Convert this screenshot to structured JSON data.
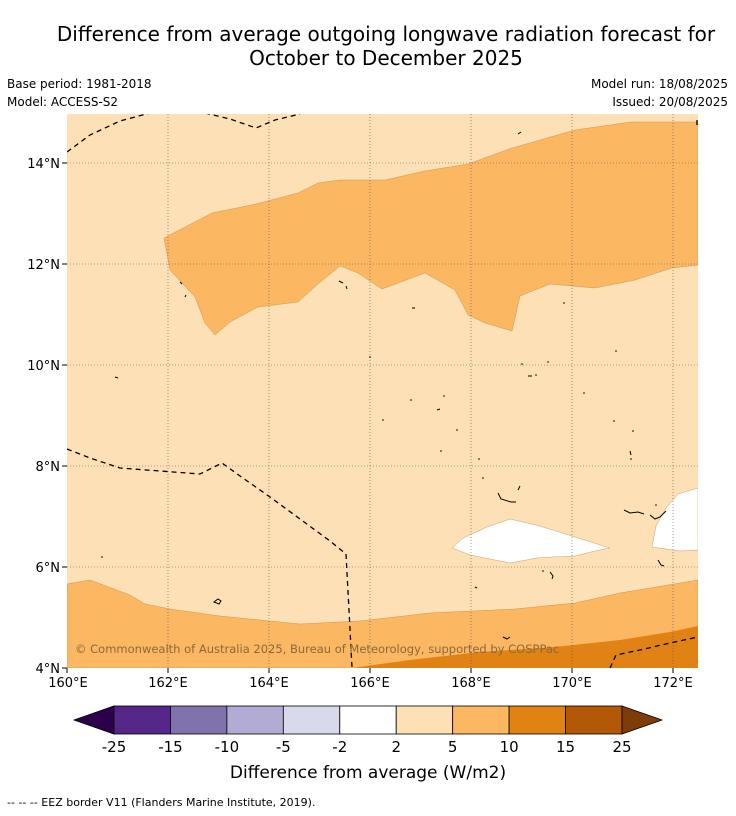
{
  "title_line1": "Difference from average outgoing longwave radiation forecast for",
  "title_line2": "October to December 2025",
  "meta": {
    "base_period": "Base period: 1981-2018",
    "model": "Model: ACCESS-S2",
    "model_run": "Model run: 18/08/2025",
    "issued": "Issued: 20/08/2025"
  },
  "copyright": "© Commonwealth of Australia 2025, Bureau of Meteorology, supported by COSPPac",
  "chart_data": {
    "type": "map",
    "x_ticks": [
      "160°E",
      "162°E",
      "164°E",
      "166°E",
      "168°E",
      "170°E",
      "172°E"
    ],
    "y_ticks": [
      "4°N",
      "6°N",
      "8°N",
      "10°N",
      "12°N",
      "14°N"
    ],
    "x_range": [
      160,
      172.5
    ],
    "y_range": [
      4,
      15
    ],
    "colorbar": {
      "label": "Difference from average (W/m2)",
      "ticks": [
        "-25",
        "-15",
        "-10",
        "-5",
        "-2",
        "2",
        "5",
        "10",
        "15",
        "25"
      ],
      "colors": [
        "#2d004b",
        "#542788",
        "#8073ac",
        "#b2abd2",
        "#d8daeb",
        "#ffffff",
        "#fde0b6",
        "#fbb762",
        "#e08214",
        "#b35806",
        "#7f3b08"
      ]
    },
    "legend_note": "-- -- -- EEZ border V11 (Flanders Marine Institute, 2019)."
  }
}
